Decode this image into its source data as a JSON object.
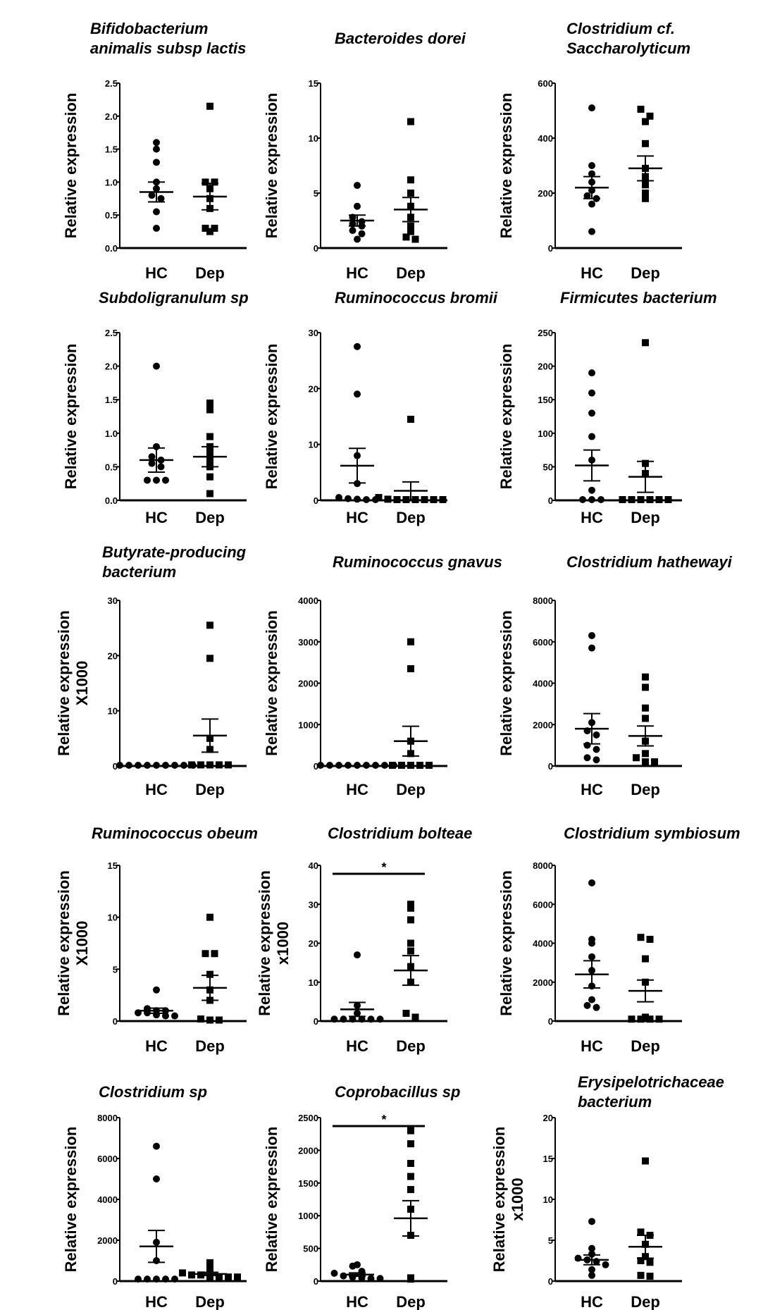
{
  "chart_data": [
    {
      "type": "scatter",
      "title_lines": [
        "Bifidobacterium",
        "animalis subsp lactis"
      ],
      "ylabel_lines": [
        "Relative expression"
      ],
      "categories": [
        "HC",
        "Dep"
      ],
      "ylim": [
        0,
        2.5
      ],
      "yticks": [
        "0.0",
        "0.5",
        "1.0",
        "1.5",
        "2.0",
        "2.5"
      ],
      "significance": "",
      "series": [
        {
          "values": [
            1.6,
            1.5,
            1.3,
            1.0,
            0.9,
            0.8,
            0.75,
            0.55,
            0.3
          ],
          "mean": 0.85,
          "sem": 0.15
        },
        {
          "values": [
            2.15,
            1.0,
            1.0,
            0.9,
            0.75,
            0.6,
            0.3,
            0.3,
            0.25
          ],
          "mean": 0.78,
          "sem": 0.2
        }
      ]
    },
    {
      "type": "scatter",
      "title_lines": [
        "Bacteroides dorei"
      ],
      "ylabel_lines": [
        "Relative expression"
      ],
      "categories": [
        "HC",
        "Dep"
      ],
      "ylim": [
        0,
        15
      ],
      "yticks": [
        "0",
        "5",
        "10",
        "15"
      ],
      "significance": "",
      "series": [
        {
          "values": [
            5.7,
            3.8,
            2.8,
            2.4,
            2.2,
            2.0,
            1.6,
            1.3,
            0.8
          ],
          "mean": 2.5,
          "sem": 0.5
        },
        {
          "values": [
            11.5,
            6.2,
            5.0,
            3.8,
            2.8,
            2.0,
            1.5,
            1.0,
            0.8
          ],
          "mean": 3.5,
          "sem": 1.1
        }
      ]
    },
    {
      "type": "scatter",
      "title_lines": [
        "Clostridium cf.",
        "Saccharolyticum"
      ],
      "ylabel_lines": [
        "Relative expression"
      ],
      "categories": [
        "HC",
        "Dep"
      ],
      "ylim": [
        0,
        600
      ],
      "yticks": [
        "0",
        "200",
        "400",
        "600"
      ],
      "significance": "",
      "series": [
        {
          "values": [
            510,
            300,
            270,
            240,
            210,
            190,
            180,
            160,
            60
          ],
          "mean": 220,
          "sem": 40
        },
        {
          "values": [
            505,
            480,
            460,
            380,
            290,
            260,
            230,
            200,
            180
          ],
          "mean": 290,
          "sem": 45
        }
      ]
    },
    {
      "type": "scatter",
      "title_lines": [
        "Subdoligranulum sp"
      ],
      "ylabel_lines": [
        "Relative expression"
      ],
      "categories": [
        "HC",
        "Dep"
      ],
      "ylim": [
        0,
        2.5
      ],
      "yticks": [
        "0.0",
        "0.5",
        "1.0",
        "1.5",
        "2.0",
        "2.5"
      ],
      "significance": "",
      "series": [
        {
          "values": [
            2.0,
            0.8,
            0.65,
            0.6,
            0.55,
            0.5,
            0.3,
            0.3,
            0.3
          ],
          "mean": 0.6,
          "sem": 0.18
        },
        {
          "values": [
            1.45,
            1.35,
            0.95,
            0.8,
            0.7,
            0.6,
            0.5,
            0.35,
            0.1
          ],
          "mean": 0.65,
          "sem": 0.15
        }
      ]
    },
    {
      "type": "scatter",
      "title_lines": [
        "Ruminococcus bromii"
      ],
      "ylabel_lines": [
        "Relative expression"
      ],
      "categories": [
        "HC",
        "Dep"
      ],
      "ylim": [
        0,
        30
      ],
      "yticks": [
        "0",
        "10",
        "20",
        "30"
      ],
      "significance": "",
      "series": [
        {
          "values": [
            27.5,
            19.0,
            8.0,
            3.0,
            0.5,
            0.3,
            0.2,
            0.1,
            0.1
          ],
          "mean": 6.2,
          "sem": 3.1
        },
        {
          "values": [
            14.5,
            0.5,
            0.2,
            0.1,
            0.1,
            0.1,
            0.1,
            0.1,
            0.1
          ],
          "mean": 1.7,
          "sem": 1.6
        }
      ]
    },
    {
      "type": "scatter",
      "title_lines": [
        "Firmicutes bacterium"
      ],
      "ylabel_lines": [
        "Relative expression"
      ],
      "categories": [
        "HC",
        "Dep"
      ],
      "ylim": [
        0,
        250
      ],
      "yticks": [
        "0",
        "50",
        "100",
        "150",
        "200",
        "250"
      ],
      "significance": "",
      "series": [
        {
          "values": [
            190,
            160,
            130,
            95,
            60,
            15,
            1,
            1,
            1
          ],
          "mean": 52,
          "sem": 23
        },
        {
          "values": [
            235,
            55,
            40,
            1,
            1,
            1,
            1,
            1,
            1
          ],
          "mean": 35,
          "sem": 23
        }
      ]
    },
    {
      "type": "scatter",
      "title_lines": [
        "Butyrate-producing",
        "bacterium"
      ],
      "ylabel_lines": [
        "Relative expression",
        "X1000"
      ],
      "categories": [
        "HC",
        "Dep"
      ],
      "ylim": [
        0,
        30
      ],
      "yticks": [
        "0",
        "10",
        "20",
        "30"
      ],
      "significance": "",
      "series": [
        {
          "values": [
            0,
            0,
            0,
            0,
            0,
            0,
            0,
            0,
            0
          ],
          "mean": 0,
          "sem": 0
        },
        {
          "values": [
            25.5,
            19.5,
            5.0,
            3.0,
            0.2,
            0.2,
            0.2,
            0.2,
            0.2
          ],
          "mean": 5.5,
          "sem": 3.0
        }
      ]
    },
    {
      "type": "scatter",
      "title_lines": [
        "Ruminococcus gnavus"
      ],
      "ylabel_lines": [
        "Relative expression"
      ],
      "categories": [
        "HC",
        "Dep"
      ],
      "ylim": [
        0,
        4000
      ],
      "yticks": [
        "0",
        "1000",
        "2000",
        "3000",
        "4000"
      ],
      "significance": "",
      "series": [
        {
          "values": [
            0,
            0,
            0,
            0,
            0,
            0,
            0,
            0,
            0
          ],
          "mean": 0,
          "sem": 0
        },
        {
          "values": [
            3000,
            2350,
            600,
            300,
            10,
            10,
            10,
            10,
            10
          ],
          "mean": 600,
          "sem": 360
        }
      ]
    },
    {
      "type": "scatter",
      "title_lines": [
        "Clostridium hathewayi"
      ],
      "ylabel_lines": [
        "Relative expression"
      ],
      "categories": [
        "HC",
        "Dep"
      ],
      "ylim": [
        0,
        8000
      ],
      "yticks": [
        "0",
        "2000",
        "4000",
        "6000",
        "8000"
      ],
      "significance": "",
      "series": [
        {
          "values": [
            6300,
            5700,
            2100,
            1700,
            1500,
            1000,
            800,
            400,
            300
          ],
          "mean": 1800,
          "sem": 730
        },
        {
          "values": [
            4300,
            3800,
            2800,
            2300,
            1200,
            600,
            400,
            200,
            200
          ],
          "mean": 1450,
          "sem": 480
        }
      ]
    },
    {
      "type": "scatter",
      "title_lines": [
        "Ruminococcus obeum"
      ],
      "ylabel_lines": [
        "Relative expression",
        "X1000"
      ],
      "categories": [
        "HC",
        "Dep"
      ],
      "ylim": [
        0,
        15
      ],
      "yticks": [
        "0",
        "5",
        "10",
        "15"
      ],
      "significance": "",
      "series": [
        {
          "values": [
            3.0,
            1.2,
            1.0,
            1.0,
            0.8,
            0.8,
            0.6,
            0.5,
            0.5
          ],
          "mean": 1.0,
          "sem": 0.25
        },
        {
          "values": [
            10.0,
            6.5,
            6.5,
            4.5,
            3.0,
            2.0,
            0.2,
            0.1,
            0.1
          ],
          "mean": 3.2,
          "sem": 1.2
        }
      ]
    },
    {
      "type": "scatter",
      "title_lines": [
        "Clostridium bolteae"
      ],
      "ylabel_lines": [
        "Relative expression",
        "x1000"
      ],
      "categories": [
        "HC",
        "Dep"
      ],
      "ylim": [
        0,
        40
      ],
      "yticks": [
        "0",
        "10",
        "20",
        "30",
        "40"
      ],
      "significance": "*",
      "series": [
        {
          "values": [
            17,
            4,
            2,
            0.5,
            0.5,
            0.5,
            0.5,
            0.5,
            0.5
          ],
          "mean": 3,
          "sem": 1.8
        },
        {
          "values": [
            30,
            29,
            26,
            20,
            18,
            14,
            10,
            2,
            1
          ],
          "mean": 13,
          "sem": 3.8
        }
      ]
    },
    {
      "type": "scatter",
      "title_lines": [
        "Clostridium symbiosum"
      ],
      "ylabel_lines": [
        "Relative expression"
      ],
      "categories": [
        "HC",
        "Dep"
      ],
      "ylim": [
        0,
        8000
      ],
      "yticks": [
        "0",
        "2000",
        "4000",
        "6000",
        "8000"
      ],
      "significance": "",
      "series": [
        {
          "values": [
            7100,
            4200,
            4000,
            3300,
            2600,
            1800,
            1100,
            800,
            700
          ],
          "mean": 2400,
          "sem": 700
        },
        {
          "values": [
            4300,
            4200,
            3200,
            2000,
            200,
            100,
            100,
            100,
            100
          ],
          "mean": 1550,
          "sem": 560
        }
      ]
    },
    {
      "type": "scatter",
      "title_lines": [
        "Clostridium sp"
      ],
      "ylabel_lines": [
        "Relative expression"
      ],
      "categories": [
        "HC",
        "Dep"
      ],
      "ylim": [
        0,
        8000
      ],
      "yticks": [
        "0",
        "2000",
        "4000",
        "6000",
        "8000"
      ],
      "significance": "",
      "series": [
        {
          "values": [
            6600,
            5000,
            1900,
            1000,
            100,
            100,
            100,
            100,
            100
          ],
          "mean": 1700,
          "sem": 780
        },
        {
          "values": [
            900,
            600,
            400,
            300,
            300,
            200,
            200,
            200,
            200
          ],
          "mean": 350,
          "sem": 80
        }
      ]
    },
    {
      "type": "scatter",
      "title_lines": [
        "Coprobacillus sp"
      ],
      "ylabel_lines": [
        "Relative expression"
      ],
      "categories": [
        "HC",
        "Dep"
      ],
      "ylim": [
        0,
        2500
      ],
      "yticks": [
        "0",
        "500",
        "1000",
        "1500",
        "2000",
        "2500"
      ],
      "significance": "*",
      "series": [
        {
          "values": [
            250,
            230,
            150,
            120,
            80,
            60,
            50,
            40,
            40
          ],
          "mean": 100,
          "sem": 25
        },
        {
          "values": [
            2300,
            2100,
            1800,
            1600,
            1400,
            1100,
            700,
            50,
            30
          ],
          "mean": 960,
          "sem": 270
        }
      ]
    },
    {
      "type": "scatter",
      "title_lines": [
        "Erysipelotrichaceae",
        "bacterium"
      ],
      "ylabel_lines": [
        "Relative expression",
        "x1000"
      ],
      "categories": [
        "HC",
        "Dep"
      ],
      "ylim": [
        0,
        20
      ],
      "yticks": [
        "0",
        "5",
        "10",
        "15",
        "20"
      ],
      "significance": "",
      "series": [
        {
          "values": [
            7.3,
            4.0,
            3.3,
            2.8,
            2.6,
            2.4,
            2.0,
            1.4,
            0.7
          ],
          "mean": 2.6,
          "sem": 0.6
        },
        {
          "values": [
            14.7,
            6.0,
            5.6,
            4.5,
            3.0,
            2.5,
            2.3,
            0.7,
            0.6
          ],
          "mean": 4.2,
          "sem": 1.4
        }
      ]
    }
  ]
}
